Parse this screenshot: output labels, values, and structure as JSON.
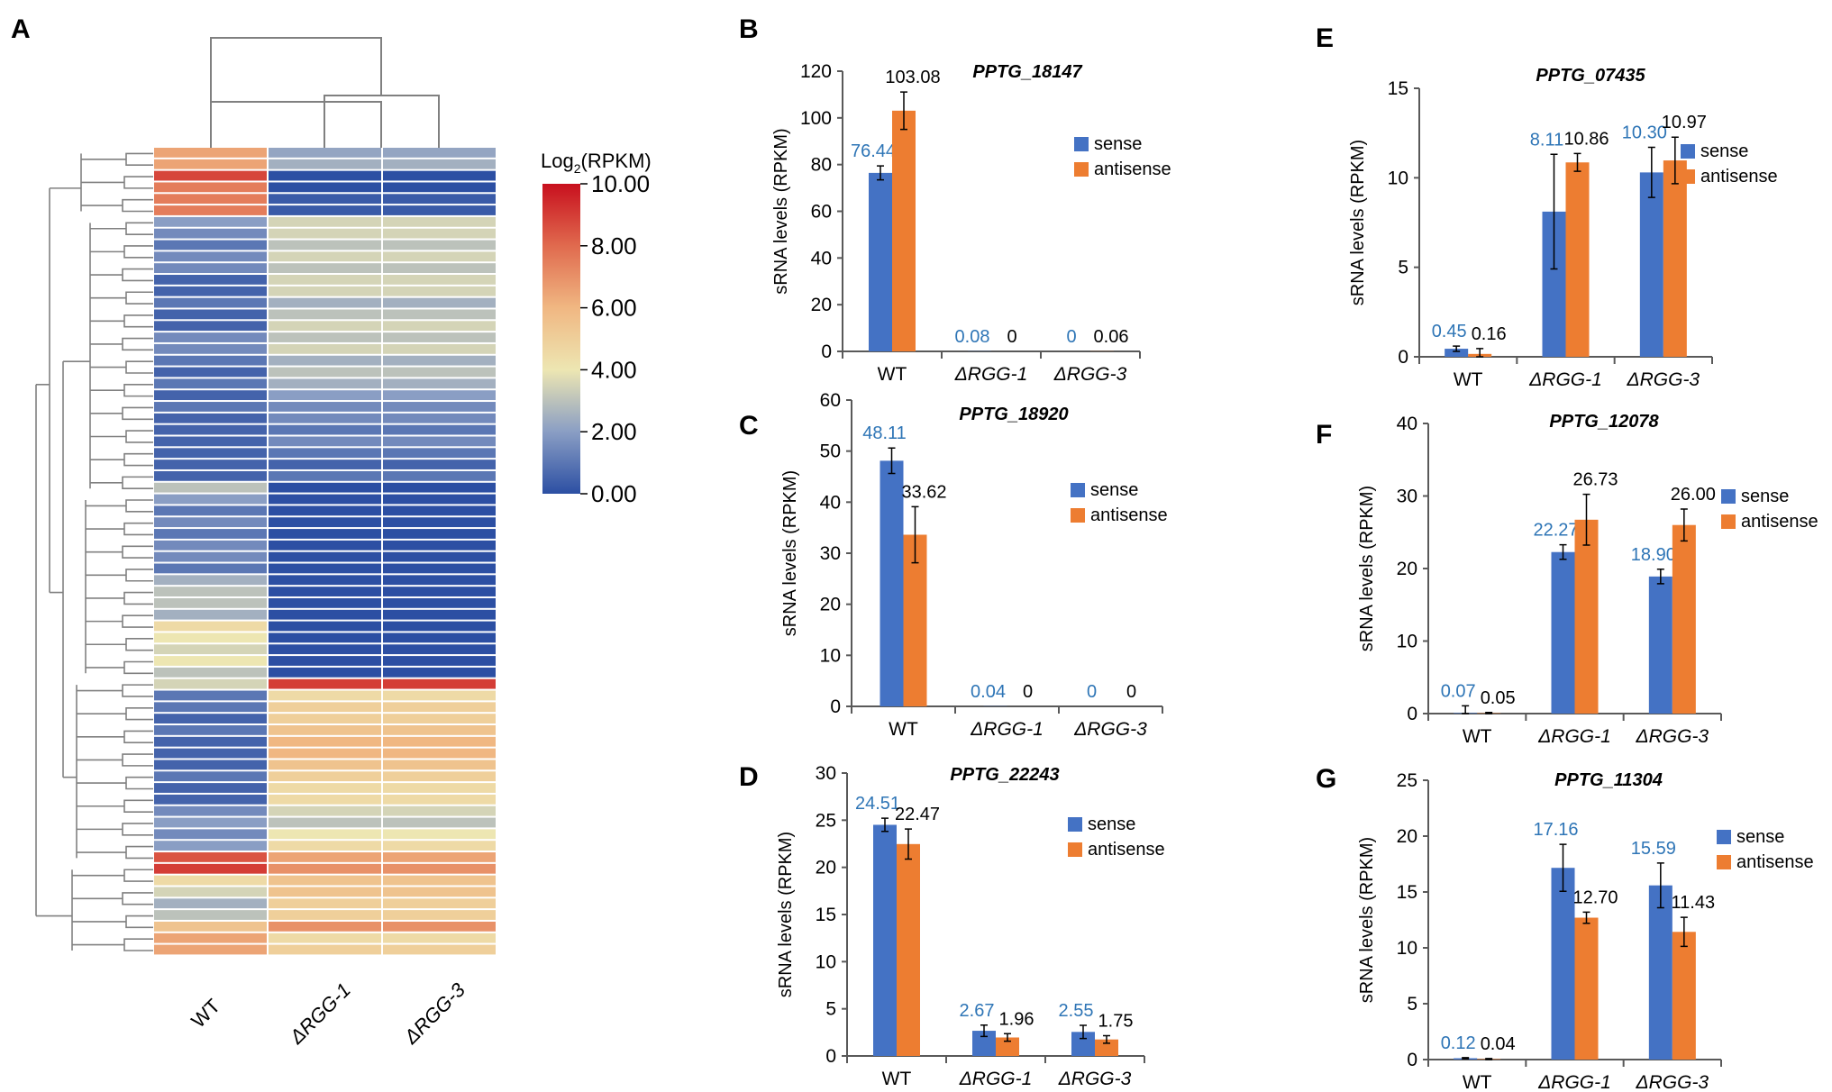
{
  "colors": {
    "sense": "#4472C4",
    "antisense": "#ED7D31",
    "sense_label": "#2E75B6",
    "value_label": "#000000",
    "axis": "#595959",
    "dendrogram": "#808080"
  },
  "heatmap": {
    "panel_label": "A",
    "columns": [
      "WT",
      "ΔRGG-1",
      "ΔRGG-3"
    ],
    "colorbar": {
      "title_prefix": "Log",
      "title_sub": "2",
      "title_suffix": "(RPKM)",
      "ticks": [
        "10.00",
        "8.00",
        "6.00",
        "4.00",
        "2.00",
        "0.00"
      ]
    },
    "rows": [
      [
        6.5,
        2.2,
        2.2
      ],
      [
        6.5,
        2.5,
        2.5
      ],
      [
        8.8,
        0.0,
        0.0
      ],
      [
        7.5,
        0.0,
        0.0
      ],
      [
        7.5,
        0.3,
        0.3
      ],
      [
        7.5,
        0.3,
        0.3
      ],
      [
        2.0,
        3.5,
        3.5
      ],
      [
        1.5,
        3.5,
        3.5
      ],
      [
        1.0,
        3.0,
        3.0
      ],
      [
        1.5,
        3.5,
        3.5
      ],
      [
        1.5,
        3.0,
        3.0
      ],
      [
        0.5,
        3.5,
        3.5
      ],
      [
        0.5,
        3.5,
        3.5
      ],
      [
        1.0,
        2.5,
        2.5
      ],
      [
        0.5,
        3.0,
        3.0
      ],
      [
        0.5,
        3.5,
        3.5
      ],
      [
        1.5,
        3.0,
        3.0
      ],
      [
        1.5,
        3.5,
        3.5
      ],
      [
        1.0,
        2.5,
        2.5
      ],
      [
        0.5,
        3.0,
        3.0
      ],
      [
        1.0,
        2.5,
        2.5
      ],
      [
        0.5,
        2.0,
        2.0
      ],
      [
        1.0,
        1.5,
        1.5
      ],
      [
        0.5,
        1.5,
        1.5
      ],
      [
        0.5,
        1.0,
        1.0
      ],
      [
        0.5,
        1.5,
        1.5
      ],
      [
        0.5,
        1.0,
        1.0
      ],
      [
        0.5,
        0.5,
        0.5
      ],
      [
        0.5,
        1.0,
        1.0
      ],
      [
        3.0,
        0.0,
        0.0
      ],
      [
        2.0,
        0.0,
        0.0
      ],
      [
        1.0,
        0.0,
        0.0
      ],
      [
        1.5,
        0.0,
        0.0
      ],
      [
        1.0,
        0.0,
        0.0
      ],
      [
        1.5,
        0.0,
        0.0
      ],
      [
        1.5,
        0.0,
        0.0
      ],
      [
        1.0,
        0.0,
        0.0
      ],
      [
        2.5,
        0.0,
        0.0
      ],
      [
        3.0,
        0.0,
        0.0
      ],
      [
        3.0,
        0.0,
        0.0
      ],
      [
        2.5,
        0.0,
        0.0
      ],
      [
        4.5,
        0.0,
        0.0
      ],
      [
        4.0,
        0.0,
        0.0
      ],
      [
        3.5,
        0.0,
        0.0
      ],
      [
        4.0,
        0.0,
        0.0
      ],
      [
        3.0,
        0.0,
        0.0
      ],
      [
        3.5,
        9.0,
        9.0
      ],
      [
        1.0,
        4.5,
        4.5
      ],
      [
        1.0,
        5.0,
        5.0
      ],
      [
        0.5,
        5.0,
        5.0
      ],
      [
        1.0,
        5.5,
        5.5
      ],
      [
        0.5,
        6.0,
        6.0
      ],
      [
        0.5,
        6.0,
        6.0
      ],
      [
        0.5,
        5.5,
        5.5
      ],
      [
        1.0,
        5.0,
        5.0
      ],
      [
        0.5,
        4.5,
        4.5
      ],
      [
        0.5,
        4.5,
        4.5
      ],
      [
        1.5,
        3.5,
        3.5
      ],
      [
        2.0,
        3.0,
        3.0
      ],
      [
        1.5,
        4.0,
        4.0
      ],
      [
        2.0,
        4.5,
        4.5
      ],
      [
        8.5,
        6.5,
        6.5
      ],
      [
        9.0,
        7.0,
        7.0
      ],
      [
        4.5,
        5.5,
        5.5
      ],
      [
        3.5,
        5.5,
        5.5
      ],
      [
        2.5,
        5.0,
        5.0
      ],
      [
        3.0,
        5.0,
        5.0
      ],
      [
        5.5,
        7.0,
        7.0
      ],
      [
        6.5,
        4.5,
        4.5
      ],
      [
        6.5,
        5.0,
        5.0
      ]
    ]
  },
  "chart_data": [
    {
      "panel": "B",
      "type": "bar",
      "title": "PPTG_18147",
      "ylabel": "sRNA levels (RPKM)",
      "ylim": [
        0,
        120
      ],
      "yticks": [
        0,
        20,
        40,
        60,
        80,
        100,
        120
      ],
      "categories": [
        "WT",
        "ΔRGG-1",
        "ΔRGG-3"
      ],
      "series": [
        {
          "name": "sense",
          "values": [
            76.44,
            0.08,
            0
          ],
          "errors": [
            3,
            0,
            0
          ],
          "labels": [
            "76.44",
            "0.08",
            "0"
          ]
        },
        {
          "name": "antisense",
          "values": [
            103.08,
            0,
            0.06
          ],
          "errors": [
            8,
            0,
            0
          ],
          "labels": [
            "103.08",
            "0",
            "0.06"
          ]
        }
      ],
      "legend": "right"
    },
    {
      "panel": "C",
      "type": "bar",
      "title": "PPTG_18920",
      "ylabel": "sRNA levels (RPKM)",
      "ylim": [
        0,
        60
      ],
      "yticks": [
        0,
        10,
        20,
        30,
        40,
        50,
        60
      ],
      "categories": [
        "WT",
        "ΔRGG-1",
        "ΔRGG-3"
      ],
      "series": [
        {
          "name": "sense",
          "values": [
            48.11,
            0.04,
            0
          ],
          "errors": [
            2.5,
            0,
            0
          ],
          "labels": [
            "48.11",
            "0.04",
            "0"
          ]
        },
        {
          "name": "antisense",
          "values": [
            33.62,
            0,
            0
          ],
          "errors": [
            5.5,
            0,
            0
          ],
          "labels": [
            "33.62",
            "0",
            "0"
          ]
        }
      ],
      "legend": "right"
    },
    {
      "panel": "D",
      "type": "bar",
      "title": "PPTG_22243",
      "ylabel": "sRNA levels (RPKM)",
      "ylim": [
        0,
        30
      ],
      "yticks": [
        0,
        5,
        10,
        15,
        20,
        25,
        30
      ],
      "categories": [
        "WT",
        "ΔRGG-1",
        "ΔRGG-3"
      ],
      "series": [
        {
          "name": "sense",
          "values": [
            24.51,
            2.67,
            2.55
          ],
          "errors": [
            0.7,
            0.6,
            0.7
          ],
          "labels": [
            "24.51",
            "2.67",
            "2.55"
          ]
        },
        {
          "name": "antisense",
          "values": [
            22.47,
            1.96,
            1.75
          ],
          "errors": [
            1.6,
            0.4,
            0.4
          ],
          "labels": [
            "22.47",
            "1.96",
            "1.75"
          ]
        }
      ],
      "legend": "right"
    },
    {
      "panel": "E",
      "type": "bar",
      "title": "PPTG_07435",
      "ylabel": "sRNA levels (RPKM)",
      "ylim": [
        0,
        15
      ],
      "yticks": [
        0,
        5,
        10,
        15
      ],
      "categories": [
        "WT",
        "ΔRGG-1",
        "ΔRGG-3"
      ],
      "series": [
        {
          "name": "sense",
          "values": [
            0.45,
            8.11,
            10.3
          ],
          "errors": [
            0.15,
            3.2,
            1.4
          ],
          "labels": [
            "0.45",
            "8.11",
            "10.30"
          ]
        },
        {
          "name": "antisense",
          "values": [
            0.16,
            10.86,
            10.97
          ],
          "errors": [
            0.3,
            0.5,
            1.3
          ],
          "labels": [
            "0.16",
            "10.86",
            "10.97"
          ]
        }
      ],
      "legend": "right"
    },
    {
      "panel": "F",
      "type": "bar",
      "title": "PPTG_12078",
      "ylabel": "sRNA levels (RPKM)",
      "ylim": [
        0,
        40
      ],
      "yticks": [
        0,
        10,
        20,
        30,
        40
      ],
      "categories": [
        "WT",
        "ΔRGG-1",
        "ΔRGG-3"
      ],
      "series": [
        {
          "name": "sense",
          "values": [
            0.07,
            22.27,
            18.9
          ],
          "errors": [
            1,
            1,
            1
          ],
          "labels": [
            "0.07",
            "22.27",
            "18.90"
          ]
        },
        {
          "name": "antisense",
          "values": [
            0.05,
            26.73,
            26.0
          ],
          "errors": [
            0.1,
            3.5,
            2.2
          ],
          "labels": [
            "0.05",
            "26.73",
            "26.00"
          ]
        }
      ],
      "legend": "right"
    },
    {
      "panel": "G",
      "type": "bar",
      "title": "PPTG_11304",
      "ylabel": "sRNA levels (RPKM)",
      "ylim": [
        0,
        25
      ],
      "yticks": [
        0,
        5,
        10,
        15,
        20,
        25
      ],
      "categories": [
        "WT",
        "ΔRGG-1",
        "ΔRGG-3"
      ],
      "series": [
        {
          "name": "sense",
          "values": [
            0.12,
            17.16,
            15.59
          ],
          "errors": [
            0.05,
            2.1,
            2.0
          ],
          "labels": [
            "0.12",
            "17.16",
            "15.59"
          ]
        },
        {
          "name": "antisense",
          "values": [
            0.04,
            12.7,
            11.43
          ],
          "errors": [
            0.05,
            0.5,
            1.3
          ],
          "labels": [
            "0.04",
            "12.70",
            "11.43"
          ]
        }
      ],
      "legend": "right"
    }
  ]
}
